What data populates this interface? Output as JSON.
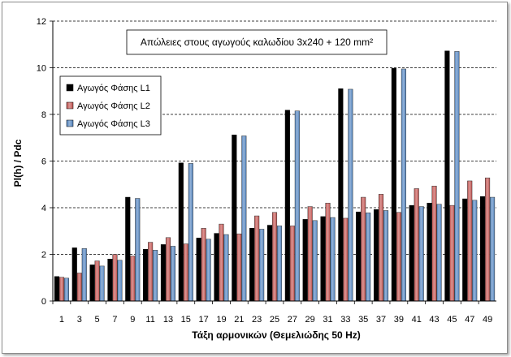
{
  "chart_data": {
    "type": "bar",
    "title": "Απώλειες στους αγωγούς καλωδίου 3x240 + 120 mm²",
    "xlabel": "Τάξη αρμονικών (Θεμελιώδης 50  Hz)",
    "ylabel": "Pl(h) / Pdc",
    "ylim": [
      0,
      12
    ],
    "yticks": [
      "0",
      "2",
      "4",
      "6",
      "8",
      "10",
      "12"
    ],
    "grid": true,
    "legend_position": "left",
    "categories": [
      "1",
      "3",
      "5",
      "7",
      "9",
      "11",
      "13",
      "15",
      "17",
      "19",
      "21",
      "23",
      "25",
      "27",
      "29",
      "31",
      "33",
      "35",
      "37",
      "39",
      "41",
      "43",
      "45",
      "47",
      "49"
    ],
    "series": [
      {
        "name": "Αγωγός Φάσης  L1",
        "color": "#000000",
        "values": [
          1.05,
          2.28,
          1.55,
          1.8,
          4.45,
          2.22,
          2.42,
          5.92,
          2.7,
          2.9,
          7.12,
          3.12,
          3.25,
          8.18,
          3.5,
          3.62,
          9.1,
          3.82,
          3.92,
          9.98,
          4.1,
          4.2,
          10.72,
          4.38,
          4.48
        ]
      },
      {
        "name": "Αγωγός Φάσης  L2",
        "color": "#c0504d",
        "values": [
          1.02,
          1.2,
          1.72,
          2.0,
          1.93,
          2.52,
          2.72,
          2.45,
          3.12,
          3.3,
          2.88,
          3.65,
          3.8,
          3.22,
          4.05,
          4.2,
          3.55,
          4.45,
          4.58,
          3.8,
          4.82,
          4.93,
          4.1,
          5.15,
          5.28
        ]
      },
      {
        "name": "Αγωγός Φάσης  L3",
        "color": "#4f81bd",
        "values": [
          0.98,
          2.25,
          1.5,
          1.75,
          4.4,
          2.18,
          2.35,
          5.9,
          2.65,
          2.85,
          7.08,
          3.08,
          3.22,
          8.15,
          3.45,
          3.58,
          9.08,
          3.78,
          3.88,
          9.95,
          4.05,
          4.15,
          10.7,
          4.32,
          4.45
        ]
      }
    ]
  }
}
